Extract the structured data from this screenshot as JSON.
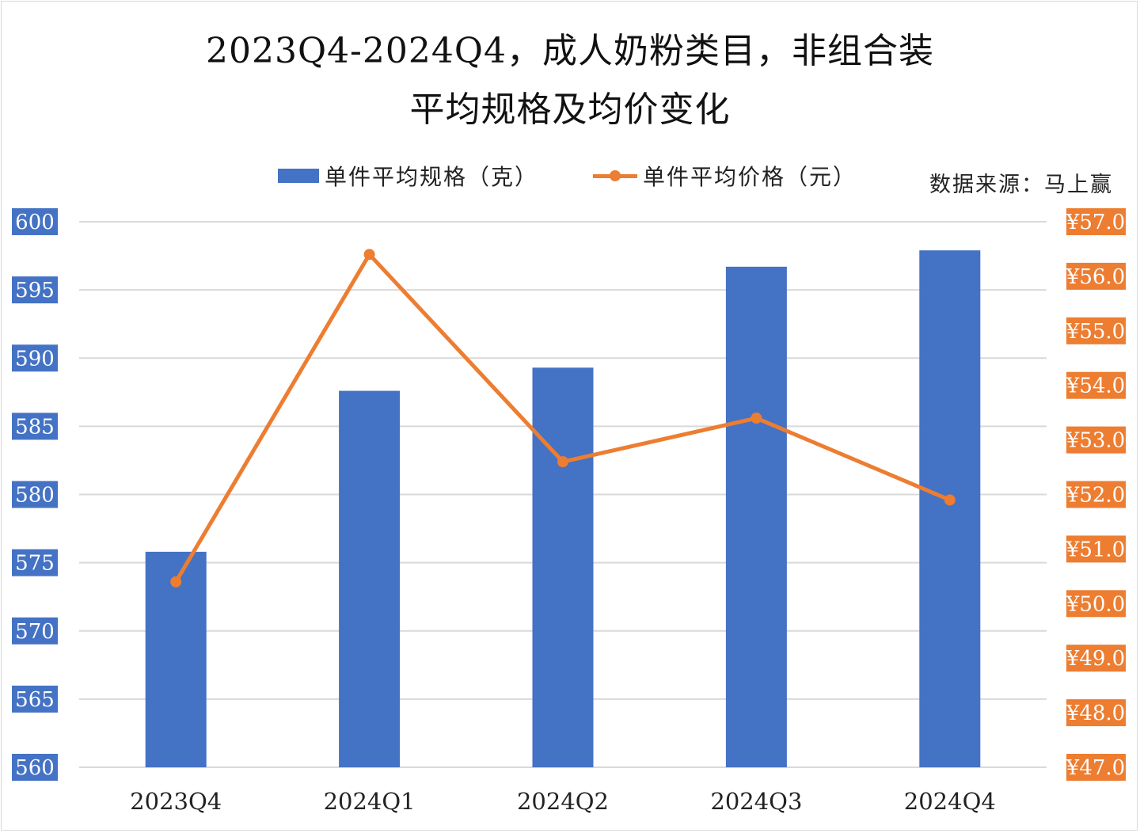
{
  "title_line1": "2023Q4-2024Q4，成人奶粉类目，非组合装",
  "title_line2": "平均规格及均价变化",
  "source": "数据来源：马上赢",
  "colors": {
    "bar": "#4472c4",
    "line": "#ed7d31",
    "grid": "#d9d9d9"
  },
  "chart_data": {
    "type": "bar",
    "title": "2023Q4-2024Q4，成人奶粉类目，非组合装 平均规格及均价变化",
    "categories": [
      "2023Q4",
      "2024Q1",
      "2024Q2",
      "2024Q3",
      "2024Q4"
    ],
    "series": [
      {
        "name": "单件平均规格（克）",
        "type": "bar",
        "axis": "left",
        "values": [
          575.8,
          587.6,
          589.3,
          596.7,
          597.9
        ]
      },
      {
        "name": "单件平均价格（元）",
        "type": "line",
        "axis": "right",
        "values": [
          50.4,
          56.4,
          52.6,
          53.4,
          51.9
        ]
      }
    ],
    "y_left": {
      "min": 560,
      "max": 600,
      "step": 5,
      "ticks": [
        "560",
        "565",
        "570",
        "575",
        "580",
        "585",
        "590",
        "595",
        "600"
      ]
    },
    "y_right": {
      "min": 47.0,
      "max": 57.0,
      "step": 1.0,
      "ticks": [
        "¥47.0",
        "¥48.0",
        "¥49.0",
        "¥50.0",
        "¥51.0",
        "¥52.0",
        "¥53.0",
        "¥54.0",
        "¥55.0",
        "¥56.0",
        "¥57.0"
      ]
    },
    "grid": true,
    "legend_position": "top"
  }
}
